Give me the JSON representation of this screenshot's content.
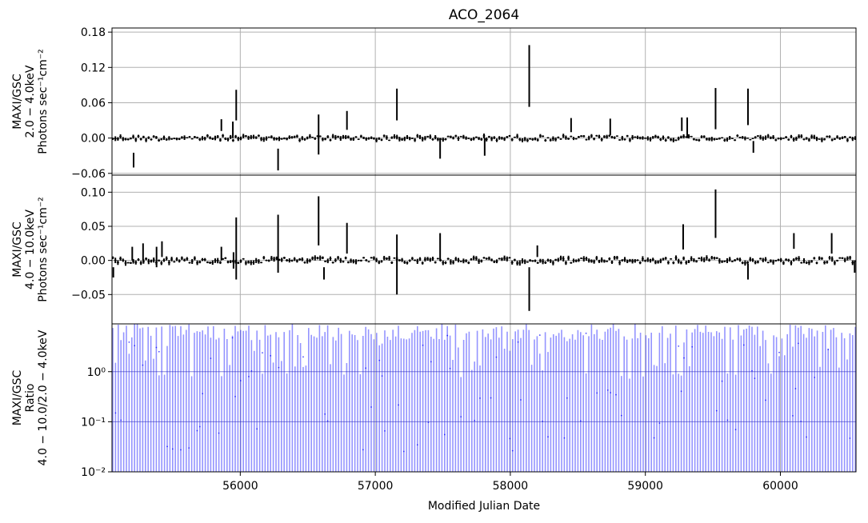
{
  "chart_data": {
    "type": "scatter",
    "title": "ACO_2064",
    "xlabel": "Modified Julian Date",
    "xlim": [
      55050,
      60560
    ],
    "xticks": [
      56000,
      57000,
      58000,
      59000,
      60000
    ],
    "grid": true,
    "panels": [
      {
        "name": "soft",
        "ylabel": [
          "MAXI/GSC",
          "2.0 − 4.0keV",
          "Photons sec⁻¹cm⁻²"
        ],
        "yscale": "linear",
        "ylim": [
          -0.063,
          0.187
        ],
        "yticks": [
          -0.06,
          0.0,
          0.06,
          0.12,
          0.18
        ],
        "ytick_labels": [
          "−0.06",
          "0.00",
          "0.06",
          "0.12",
          "0.18"
        ],
        "color": "#000000",
        "spikes": [
          {
            "x": 55210,
            "lo": -0.05,
            "hi": -0.025
          },
          {
            "x": 55860,
            "lo": 0.012,
            "hi": 0.032
          },
          {
            "x": 55945,
            "lo": 0.0,
            "hi": 0.028
          },
          {
            "x": 55970,
            "lo": 0.03,
            "hi": 0.082
          },
          {
            "x": 56280,
            "lo": -0.055,
            "hi": -0.018
          },
          {
            "x": 56580,
            "lo": -0.028,
            "hi": 0.04
          },
          {
            "x": 56790,
            "lo": 0.014,
            "hi": 0.046
          },
          {
            "x": 57160,
            "lo": 0.03,
            "hi": 0.084
          },
          {
            "x": 57480,
            "lo": -0.035,
            "hi": 0.0
          },
          {
            "x": 57810,
            "lo": -0.03,
            "hi": 0.0
          },
          {
            "x": 58140,
            "lo": 0.053,
            "hi": 0.158
          },
          {
            "x": 58450,
            "lo": 0.01,
            "hi": 0.034
          },
          {
            "x": 58740,
            "lo": 0.005,
            "hi": 0.033
          },
          {
            "x": 59270,
            "lo": 0.012,
            "hi": 0.035
          },
          {
            "x": 59310,
            "lo": 0.0,
            "hi": 0.035
          },
          {
            "x": 59520,
            "lo": 0.015,
            "hi": 0.085
          },
          {
            "x": 59760,
            "lo": 0.022,
            "hi": 0.084
          },
          {
            "x": 59800,
            "lo": -0.025,
            "hi": -0.005
          }
        ]
      },
      {
        "name": "hard",
        "ylabel": [
          "MAXI/GSC",
          "4.0 − 10.0keV",
          "Photons sec⁻¹cm⁻²"
        ],
        "yscale": "linear",
        "ylim": [
          -0.093,
          0.125
        ],
        "yticks": [
          -0.05,
          0.0,
          0.05,
          0.1
        ],
        "ytick_labels": [
          "−0.05",
          "0.00",
          "0.05",
          "0.10"
        ],
        "color": "#000000",
        "spikes": [
          {
            "x": 55060,
            "lo": -0.025,
            "hi": -0.01
          },
          {
            "x": 55200,
            "lo": 0.0,
            "hi": 0.02
          },
          {
            "x": 55280,
            "lo": 0.0,
            "hi": 0.025
          },
          {
            "x": 55380,
            "lo": -0.01,
            "hi": 0.02
          },
          {
            "x": 55420,
            "lo": 0.005,
            "hi": 0.028
          },
          {
            "x": 55860,
            "lo": 0.0,
            "hi": 0.02
          },
          {
            "x": 55950,
            "lo": -0.012,
            "hi": 0.012
          },
          {
            "x": 55970,
            "lo": -0.028,
            "hi": 0.063
          },
          {
            "x": 56280,
            "lo": -0.018,
            "hi": 0.067
          },
          {
            "x": 56580,
            "lo": 0.022,
            "hi": 0.094
          },
          {
            "x": 56620,
            "lo": -0.028,
            "hi": -0.01
          },
          {
            "x": 56790,
            "lo": 0.01,
            "hi": 0.055
          },
          {
            "x": 57160,
            "lo": -0.05,
            "hi": 0.038
          },
          {
            "x": 57480,
            "lo": 0.0,
            "hi": 0.04
          },
          {
            "x": 58140,
            "lo": -0.074,
            "hi": -0.01
          },
          {
            "x": 58200,
            "lo": 0.005,
            "hi": 0.022
          },
          {
            "x": 59280,
            "lo": 0.016,
            "hi": 0.053
          },
          {
            "x": 59520,
            "lo": 0.033,
            "hi": 0.104
          },
          {
            "x": 59760,
            "lo": -0.028,
            "hi": -0.005
          },
          {
            "x": 60100,
            "lo": 0.017,
            "hi": 0.04
          },
          {
            "x": 60380,
            "lo": 0.01,
            "hi": 0.04
          },
          {
            "x": 60550,
            "lo": -0.018,
            "hi": 0.0
          }
        ]
      },
      {
        "name": "ratio",
        "ylabel": [
          "MAXI/GSC",
          "Ratio",
          "4.0 − 10.0/2.0 − 4.0keV"
        ],
        "yscale": "log",
        "ylim": [
          0.01,
          9.0
        ],
        "yticks": [
          0.01,
          0.1,
          1.0
        ],
        "ytick_labels": [
          "10⁻²",
          "10⁻¹",
          "10⁰"
        ],
        "color": "#0000ff",
        "hlines": [
          0.1,
          1.0
        ]
      }
    ]
  }
}
